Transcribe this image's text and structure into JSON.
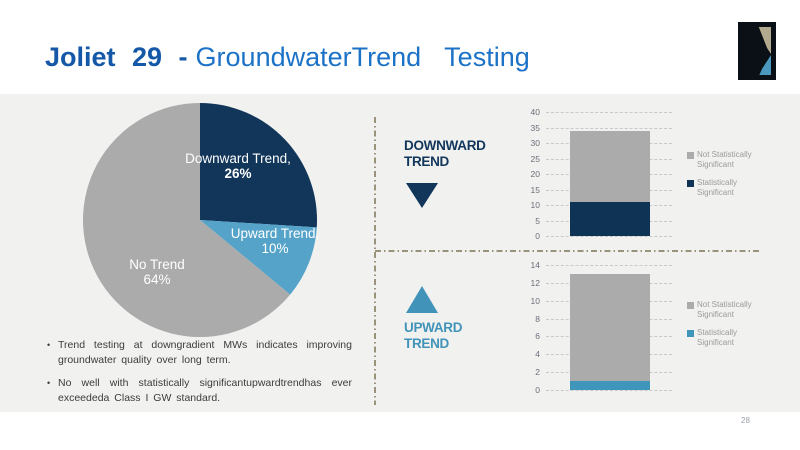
{
  "slide": {
    "title_bold": "Joliet 29 -",
    "title_regular": "GroundwaterTrend Testing",
    "page_number": "28"
  },
  "colors": {
    "title_primary": "#1558A8",
    "title_secondary": "#1C72C6",
    "navy": "#11365A",
    "light_blue": "#4193B9",
    "gray": "#ABABAB",
    "panel_bg": "#F1F1F0",
    "divider": "#9A937B",
    "logo_black": "#0B0F16",
    "logo_tan": "#B3A98E",
    "logo_blue": "#4A98BD"
  },
  "bullets": [
    "Trend testing at downgradient MWs indicates improving groundwater quality over long term.",
    "No well with statistically significantupwardtrendhas ever exceededa Class I GW standard."
  ],
  "chart_data": [
    {
      "type": "pie",
      "start_angle": "top",
      "direction": "clockwise",
      "slices": [
        {
          "label": "Downward Trend,",
          "pct_label": "26%",
          "value_pct": 26,
          "color": "#11365A"
        },
        {
          "label": "Upward Trend,",
          "pct_label": "10%",
          "value_pct": 10,
          "color": "#55A3C9"
        },
        {
          "label": "No Trend",
          "pct_label": "64%",
          "value_pct": 64,
          "color": "#ABABAB"
        }
      ]
    },
    {
      "type": "bar",
      "title": "DOWNWARD TREND",
      "ymax": 40,
      "ytick_step": 5,
      "ylim": [
        0,
        40
      ],
      "grid": true,
      "legend_position": "right",
      "segments": [
        {
          "name": "Statistically Significant",
          "value": 11,
          "color": "#0F3355"
        },
        {
          "name": "Not Statistically Significant",
          "value": 23,
          "color": "#ABABAB"
        }
      ],
      "total": 34,
      "legend": [
        {
          "label": "Not Statistically Significant",
          "color": "#ABABAB"
        },
        {
          "label": "Statistically Significant",
          "color": "#0F3355"
        }
      ]
    },
    {
      "type": "bar",
      "title": "UPWARD TREND",
      "ymax": 14,
      "ytick_step": 2,
      "ylim": [
        0,
        14
      ],
      "grid": true,
      "legend_position": "right",
      "segments": [
        {
          "name": "Statistically Significant",
          "value": 1,
          "color": "#3F96BA"
        },
        {
          "name": "Not Statistically Significant",
          "value": 12,
          "color": "#ABABAB"
        }
      ],
      "total": 13,
      "legend": [
        {
          "label": "Not Statistically Significant",
          "color": "#ABABAB"
        },
        {
          "label": "Statistically Significant",
          "color": "#3F96BA"
        }
      ]
    }
  ]
}
